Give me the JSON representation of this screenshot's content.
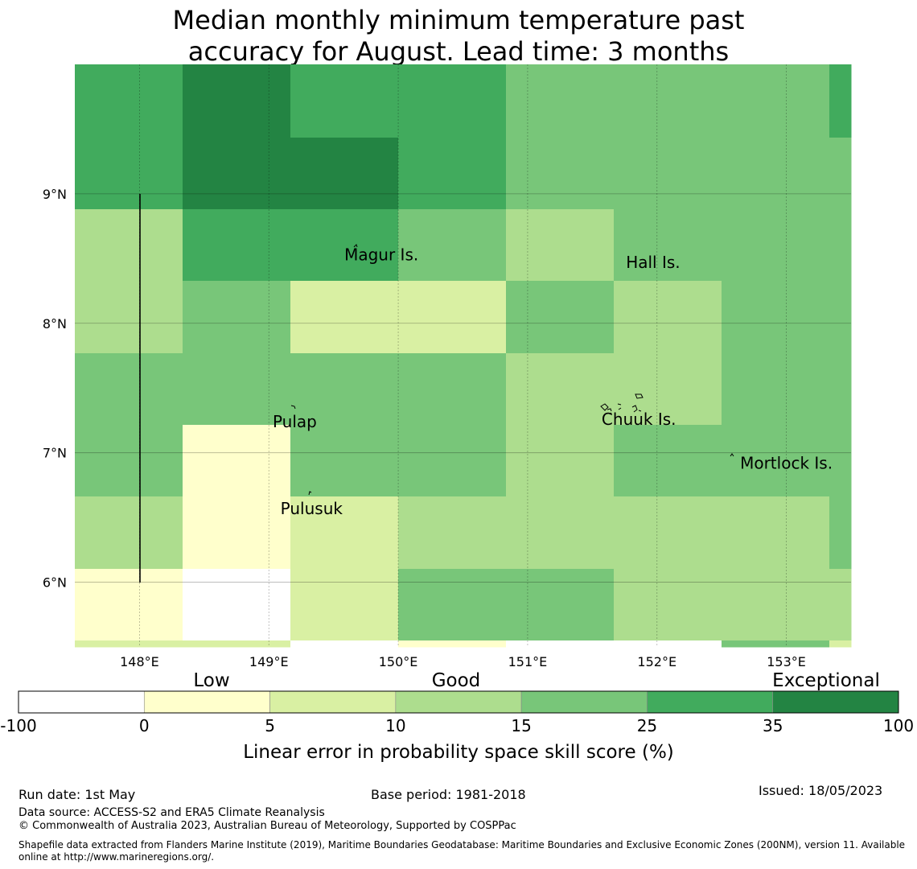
{
  "title_line1": "Median monthly minimum temperature past",
  "title_line2": "accuracy for August. Lead time: 3 months",
  "map": {
    "lon_range": [
      147.5,
      153.5
    ],
    "lat_range": [
      5.5,
      10.0
    ],
    "lon_ticks": [
      {
        "value": 148,
        "label": "148°E"
      },
      {
        "value": 149,
        "label": "149°E"
      },
      {
        "value": 150,
        "label": "150°E"
      },
      {
        "value": 151,
        "label": "151°E"
      },
      {
        "value": 152,
        "label": "152°E"
      },
      {
        "value": 153,
        "label": "153°E"
      }
    ],
    "lat_ticks": [
      {
        "value": 9,
        "label": "9°N"
      },
      {
        "value": 8,
        "label": "8°N"
      },
      {
        "value": 7,
        "label": "7°N"
      },
      {
        "value": 6,
        "label": "6°N"
      }
    ],
    "places": [
      {
        "name": "Magur Is.",
        "lon": 149.87,
        "lat": 8.53
      },
      {
        "name": "Hall Is.",
        "lon": 151.97,
        "lat": 8.47
      },
      {
        "name": "Pulap",
        "lon": 149.2,
        "lat": 7.24
      },
      {
        "name": "Chuuk Is.",
        "lon": 151.86,
        "lat": 7.26
      },
      {
        "name": "Mortlock Is.",
        "lon": 153.0,
        "lat": 6.92
      },
      {
        "name": "Pulusuk",
        "lon": 149.33,
        "lat": 6.57
      }
    ]
  },
  "legend": {
    "bounds": [
      "-100",
      "0",
      "5",
      "10",
      "15",
      "25",
      "35",
      "100"
    ],
    "colors": [
      "#ffffff",
      "#ffffcc",
      "#d9f0a3",
      "#addd8e",
      "#78c679",
      "#41ab5d",
      "#238443"
    ],
    "category_labels": [
      "Low",
      "Good",
      "Exceptional"
    ],
    "axis_label": "Linear error in probability space skill score (%)"
  },
  "footer": {
    "run_date": "Run date: 1st May",
    "base_period": "Base period: 1981-2018",
    "issued": "Issued: 18/05/2023",
    "data_source": "Data source: ACCESS-S2 and ERA5 Climate Reanalysis",
    "copyright": "© Commonwealth of Australia 2023, Australian Bureau of Meteorology, Supported by COSPPac",
    "shapefile": "Shapefile data extracted from Flanders Marine Institute (2019), Maritime Boundaries Geodatabase: Maritime Boundaries and Exclusive Economic Zones (200NM), version 11. Available online at http://www.marineregions.org/."
  }
}
